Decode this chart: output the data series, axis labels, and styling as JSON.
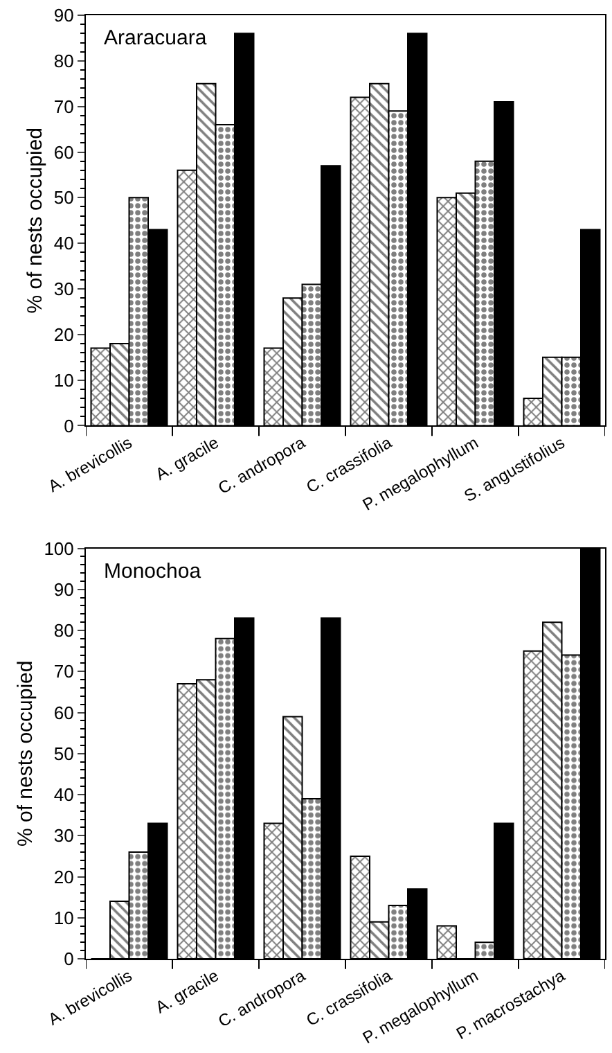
{
  "chart_data": [
    {
      "type": "bar",
      "title": "Araracuara",
      "ylabel": "% of nests occupied",
      "categories": [
        "A. brevicollis",
        "A. gracile",
        "C. andropora",
        "C. crassifolia",
        "P. megalophyllum",
        "S. angustifolius"
      ],
      "series": [
        {
          "color": "#000000",
          "values": [
            17,
            56,
            17,
            72,
            50,
            6
          ]
        },
        {
          "color": "#000000",
          "values": [
            18,
            75,
            28,
            75,
            51,
            15
          ]
        },
        {
          "color": "#000000",
          "values": [
            50,
            66,
            31,
            69,
            58,
            15
          ]
        },
        {
          "color": "#000000",
          "values": [
            43,
            86,
            57,
            86,
            71,
            43
          ]
        }
      ],
      "ylim": [
        0,
        90
      ],
      "yticks": [
        0,
        10,
        20,
        30,
        40,
        50,
        60,
        70,
        80,
        90
      ]
    },
    {
      "type": "bar",
      "title": "Monochoa",
      "ylabel": "% of nests occupied",
      "categories": [
        "A. brevicollis",
        "A. gracile",
        "C. andropora",
        "C. crassifolia",
        "P. megalophyllum",
        "P. macrostachya"
      ],
      "series": [
        {
          "color": "#000000",
          "values": [
            0,
            67,
            33,
            25,
            8,
            75
          ]
        },
        {
          "color": "#000000",
          "values": [
            14,
            68,
            59,
            9,
            0,
            82
          ]
        },
        {
          "color": "#000000",
          "values": [
            26,
            78,
            39,
            13,
            4,
            74
          ]
        },
        {
          "color": "#000000",
          "values": [
            33,
            83,
            83,
            17,
            33,
            100
          ]
        }
      ],
      "ylim": [
        0,
        100
      ],
      "yticks": [
        0,
        10,
        20,
        30,
        40,
        50,
        60,
        70,
        80,
        90,
        100
      ]
    }
  ]
}
